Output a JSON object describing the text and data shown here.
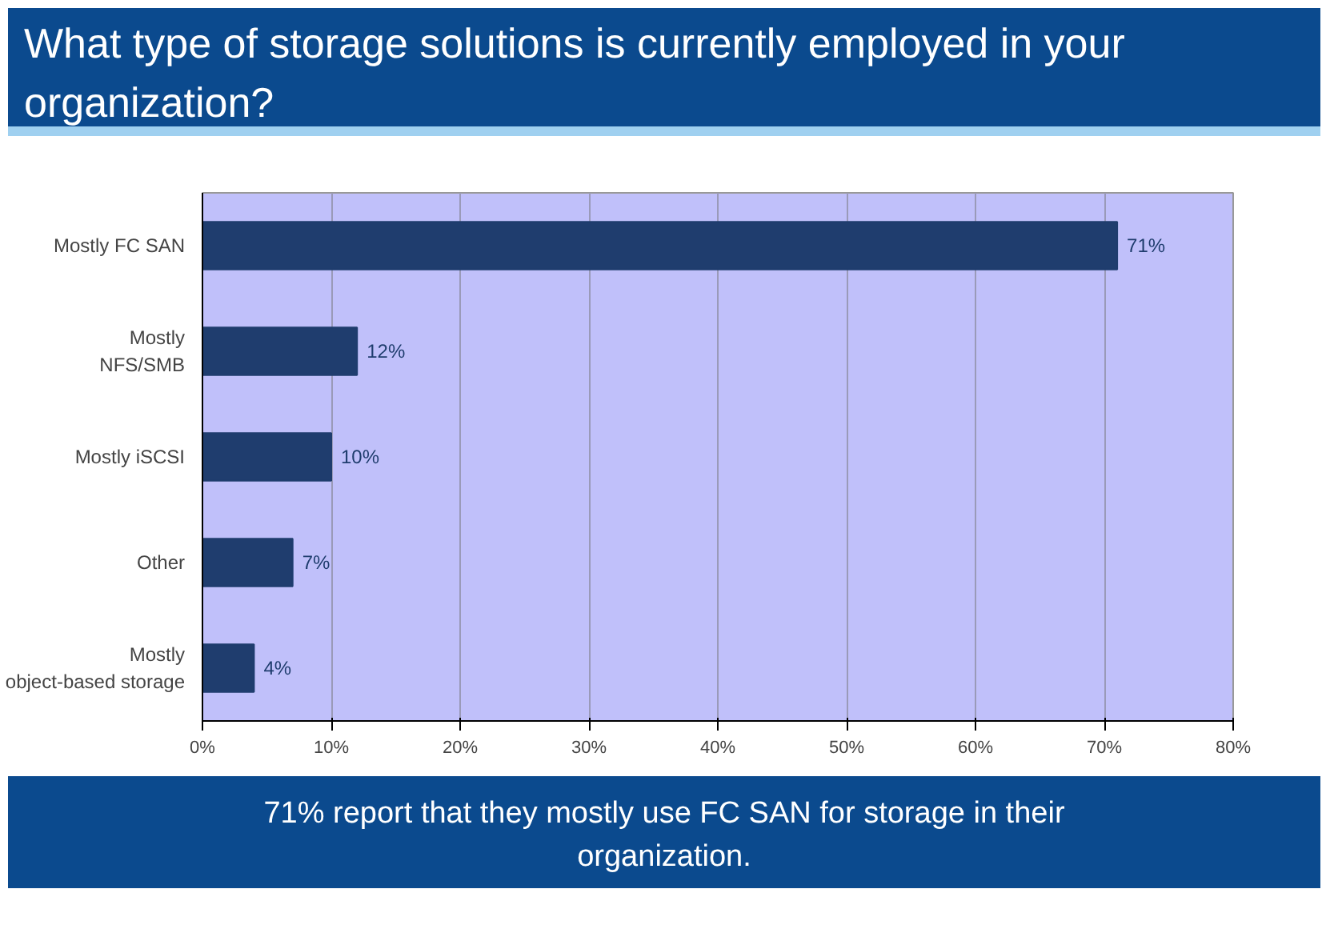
{
  "chart_data": {
    "type": "bar",
    "orientation": "horizontal",
    "title": "What type of storage solutions is currently employed in your organization?",
    "categories": [
      "Mostly FC SAN",
      "Mostly NFS/SMB",
      "Mostly iSCSI",
      "Other",
      "Mostly object-based storage"
    ],
    "values": [
      71,
      12,
      10,
      7,
      4
    ],
    "value_labels": [
      "71%",
      "12%",
      "10%",
      "7%",
      "4%"
    ],
    "color": "#1f3d6e",
    "xlim": [
      0,
      80
    ],
    "xticks": [
      {
        "value": 0,
        "label": "0%"
      },
      {
        "value": 10,
        "label": "10%"
      },
      {
        "value": 20,
        "label": "20%"
      },
      {
        "value": 30,
        "label": "30%"
      },
      {
        "value": 40,
        "label": "40%"
      },
      {
        "value": 50,
        "label": "50%"
      },
      {
        "value": 60,
        "label": "60%"
      },
      {
        "value": 70,
        "label": "70%"
      },
      {
        "value": 80,
        "label": "80%"
      }
    ],
    "grid": "x",
    "annotations": [
      "71% report that they mostly use FC SAN for storage in their organization."
    ]
  }
}
